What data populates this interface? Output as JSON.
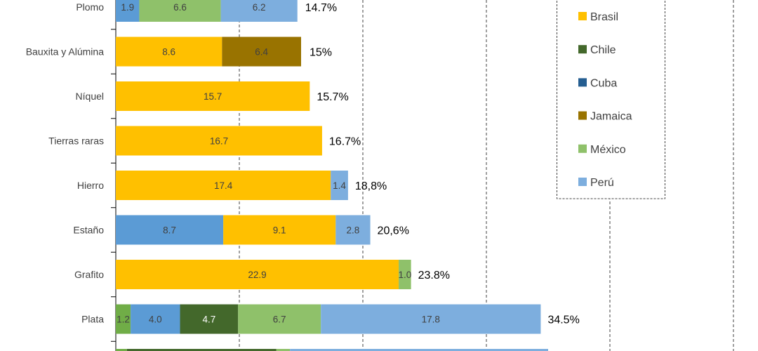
{
  "chart_data": {
    "type": "bar",
    "orientation": "horizontal",
    "stacked": true,
    "xlim": [
      0,
      50
    ],
    "grid": true,
    "legend_placement": "right",
    "categories": [
      "Plomo",
      "Bauxita y Alúmina",
      "Níquel",
      "Tierras raras",
      "Hierro",
      "Estaño",
      "Grafito",
      "Plata",
      ""
    ],
    "totals": [
      "14.7%",
      "15%",
      "15.7%",
      "16.7%",
      "18,8%",
      "20,6%",
      "23.8%",
      "34.5%",
      ""
    ],
    "series": [
      {
        "name": "",
        "color": "#70AD47",
        "values": [
          0,
          0,
          0,
          0,
          0,
          0,
          0,
          1.2,
          0.9
        ]
      },
      {
        "name": "",
        "color": "#5B9BD5",
        "values": [
          1.9,
          0,
          0,
          0,
          0,
          8.7,
          0,
          4.0,
          0
        ]
      },
      {
        "name": "Brasil",
        "color": "#FFC000",
        "values": [
          0,
          8.6,
          15.7,
          16.7,
          17.4,
          9.1,
          22.9,
          0,
          0
        ]
      },
      {
        "name": "Chile",
        "color": "#43682B",
        "values": [
          0,
          0,
          0,
          0,
          0,
          0,
          0,
          4.7,
          12.1
        ]
      },
      {
        "name": "Cuba",
        "color": "#255E91",
        "values": [
          0,
          0,
          0,
          0,
          0,
          0,
          0,
          0,
          0
        ]
      },
      {
        "name": "Jamaica",
        "color": "#997300",
        "values": [
          0,
          6.4,
          0,
          0,
          0,
          0,
          0,
          0,
          0
        ]
      },
      {
        "name": "México",
        "color": "#8FC16A",
        "values": [
          6.6,
          0,
          0,
          0,
          0,
          0,
          1.0,
          6.7,
          1.1
        ]
      },
      {
        "name": "Perú",
        "color": "#7DAEDE",
        "values": [
          6.2,
          0,
          0,
          0,
          1.4,
          2.8,
          0,
          17.8,
          20.9
        ]
      }
    ],
    "legend": [
      "Brasil",
      "Chile",
      "Cuba",
      "Jamaica",
      "México",
      "Perú"
    ]
  }
}
